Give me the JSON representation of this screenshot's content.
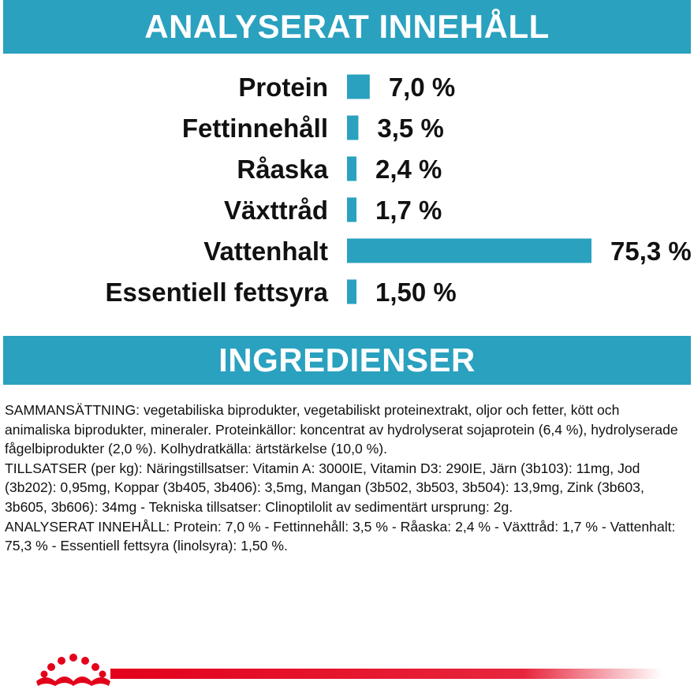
{
  "colors": {
    "accent": "#2aa1bf",
    "brand_red": "#e3001b",
    "text": "#111111"
  },
  "headers": {
    "analysis_title": "ANALYSERAT INNEHÅLL",
    "ingredients_title": "INGREDIENSER"
  },
  "chart_data": {
    "type": "bar",
    "orientation": "horizontal",
    "categories": [
      "Protein",
      "Fettinnehåll",
      "Råaska",
      "Växttråd",
      "Vattenhalt",
      "Essentiell fettsyra"
    ],
    "values": [
      7.0,
      3.5,
      2.4,
      1.7,
      75.3,
      1.5
    ],
    "value_labels": [
      "7,0 %",
      "3,5 %",
      "2,4 %",
      "1,7 %",
      "75,3 %",
      "1,50 %"
    ],
    "title": "",
    "xlabel": "",
    "ylabel": "",
    "xlim": [
      0,
      75.3
    ],
    "grid": false,
    "legend": "none"
  },
  "ingredients_text": "SAMMANSÄTTNING: vegetabiliska biprodukter, vegetabiliskt proteinextrakt, oljor och fetter, kött och animaliska biprodukter, mineraler. Proteinkällor: koncentrat av hydrolyserat sojaprotein (6,4 %), hydrolyserade fågelbiprodukter (2,0 %). Kolhydratkälla: ärtstärkelse (10,0 %).\nTILLSATSER (per kg): Näringstillsatser: Vitamin A: 3000IE, Vitamin D3: 290IE, Järn (3b103): 11mg, Jod (3b202): 0,95mg, Koppar (3b405, 3b406): 3,5mg, Mangan (3b502, 3b503, 3b504): 13,9mg, Zink (3b603, 3b605, 3b606): 34mg - Tekniska tillsatser: Clinoptilolit av sedimentärt ursprung: 2g.\nANALYSERAT INNEHÅLL: Protein: 7,0 % - Fettinnehåll: 3,5 % - Råaska: 2,4 % - Växttråd: 1,7 % - Vattenhalt: 75,3 % - Essentiell fettsyra (linolsyra): 1,50 %.",
  "footer": {
    "logo_icon": "royal-canin-crown-icon"
  }
}
